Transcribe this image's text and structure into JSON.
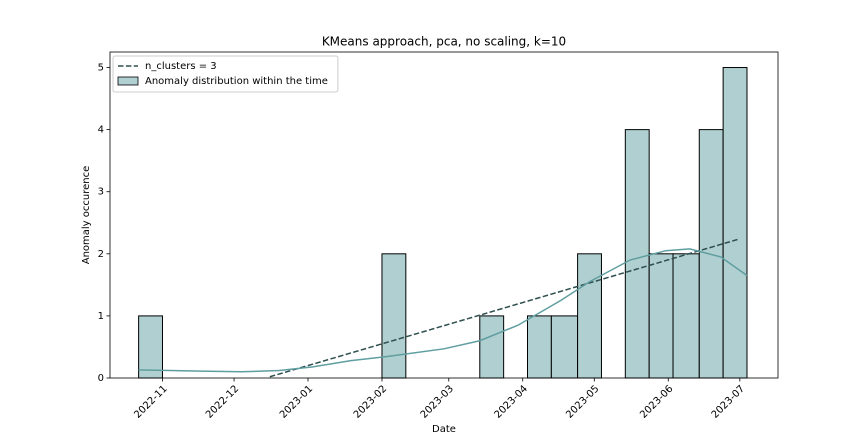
{
  "chart_data": {
    "type": "histogram",
    "title": "KMeans approach, pca, no scaling, k=10",
    "xlabel": "Date",
    "ylabel": "Anomaly occurence",
    "name": "Anomaly distribution within the time",
    "color": "#b0cfd0",
    "edgecolor": "#000000",
    "bins": [
      "2022-10-22",
      "2022-11-01",
      "2022-11-11",
      "2022-11-22",
      "2022-12-02",
      "2022-12-12",
      "2022-12-22",
      "2023-01-01",
      "2023-01-12",
      "2023-01-22",
      "2023-02-01",
      "2023-02-11",
      "2023-02-21",
      "2023-03-04",
      "2023-03-14",
      "2023-03-24",
      "2023-04-03",
      "2023-04-13",
      "2023-04-24",
      "2023-05-04",
      "2023-05-14",
      "2023-05-24",
      "2023-06-03",
      "2023-06-14",
      "2023-06-24",
      "2023-07-04"
    ],
    "values": [
      1,
      0,
      0,
      0,
      0,
      0,
      0,
      0,
      0,
      0,
      2,
      0,
      0,
      0,
      1,
      0,
      1,
      1,
      2,
      0,
      4,
      2,
      2,
      4,
      5
    ],
    "lines": [
      {
        "name": "n_clusters = 3",
        "color": "#2f4f4f",
        "dashed": true,
        "x": [
          "2022-12-16",
          "2023-06-30"
        ],
        "values": [
          0.02,
          2.23
        ]
      },
      {
        "color": "#5f9ea0",
        "dashed": false,
        "x": [
          "2022-10-22",
          "2022-11-17",
          "2022-12-04",
          "2022-12-20",
          "2023-01-03",
          "2023-01-19",
          "2023-02-04",
          "2023-02-27",
          "2023-03-14",
          "2023-03-30",
          "2023-04-17",
          "2023-04-29",
          "2023-05-16",
          "2023-05-31",
          "2023-06-10",
          "2023-06-23",
          "2023-07-04"
        ],
        "values": [
          0.13,
          0.11,
          0.1,
          0.12,
          0.18,
          0.28,
          0.35,
          0.47,
          0.6,
          0.85,
          1.25,
          1.55,
          1.9,
          2.05,
          2.08,
          1.95,
          1.65
        ]
      }
    ],
    "xlim": [
      "2022-10-10",
      "2023-07-17"
    ],
    "xticks": [
      "2022-11",
      "2022-12",
      "2023-01",
      "2023-02",
      "2023-03",
      "2023-04",
      "2023-05",
      "2023-06",
      "2023-07"
    ],
    "ylim": [
      0,
      5.25
    ],
    "yticks": [
      0,
      1,
      2,
      3,
      4,
      5
    ],
    "legend": "upper left"
  }
}
